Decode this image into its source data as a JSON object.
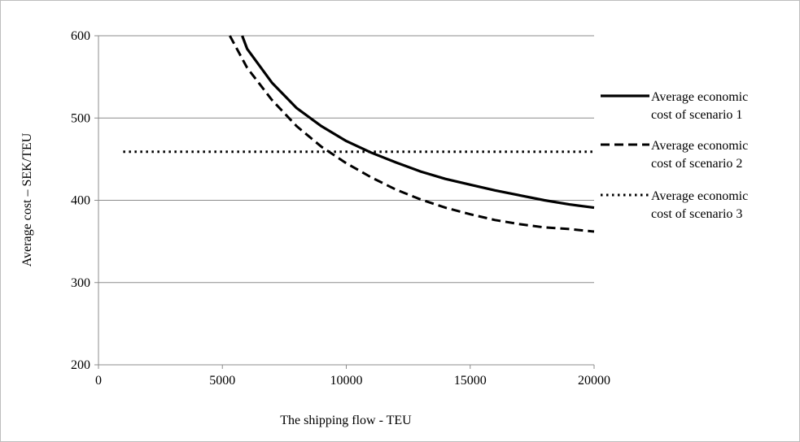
{
  "chart_data": {
    "type": "line",
    "title": "",
    "xlabel": "The shipping flow - TEU",
    "ylabel": "Average cost – SEK/TEU",
    "xlim": [
      0,
      20000
    ],
    "ylim": [
      200,
      600
    ],
    "x_ticks": [
      0,
      5000,
      10000,
      15000,
      20000
    ],
    "y_ticks": [
      200,
      300,
      400,
      500,
      600
    ],
    "x_tick_labels": [
      "0",
      "5000",
      "10000",
      "15000",
      "20000"
    ],
    "y_tick_labels": [
      "200",
      "300",
      "400",
      "500",
      "600"
    ],
    "grid": "horizontal",
    "legend_position": "right",
    "series": [
      {
        "name": "Average economic cost of scenario 1",
        "style": "solid",
        "color": "#000000",
        "x": [
          5800,
          6000,
          7000,
          8000,
          9000,
          10000,
          11000,
          12000,
          13000,
          14000,
          15000,
          16000,
          17000,
          18000,
          19000,
          20000
        ],
        "y": [
          600,
          584,
          543,
          512,
          490,
          472,
          458,
          446,
          435,
          426,
          419,
          412,
          406,
          400,
          395,
          391
        ]
      },
      {
        "name": "Average economic cost of scenario 2",
        "style": "dashed",
        "color": "#000000",
        "x": [
          5300,
          6000,
          7000,
          8000,
          9000,
          10000,
          11000,
          12000,
          13000,
          14000,
          15000,
          16000,
          17000,
          18000,
          19000,
          20000
        ],
        "y": [
          600,
          561,
          522,
          490,
          465,
          445,
          428,
          413,
          401,
          391,
          383,
          376,
          371,
          367,
          365,
          362
        ]
      },
      {
        "name": "Average economic cost of scenario 3",
        "style": "dotted",
        "color": "#000000",
        "x": [
          1000,
          20000
        ],
        "y": [
          459,
          459
        ]
      }
    ],
    "legend_lines": [
      [
        "Average economic",
        "cost of scenario 1"
      ],
      [
        "Average economic",
        "cost of scenario 2"
      ],
      [
        "Average economic",
        "cost of scenario 3"
      ]
    ]
  }
}
